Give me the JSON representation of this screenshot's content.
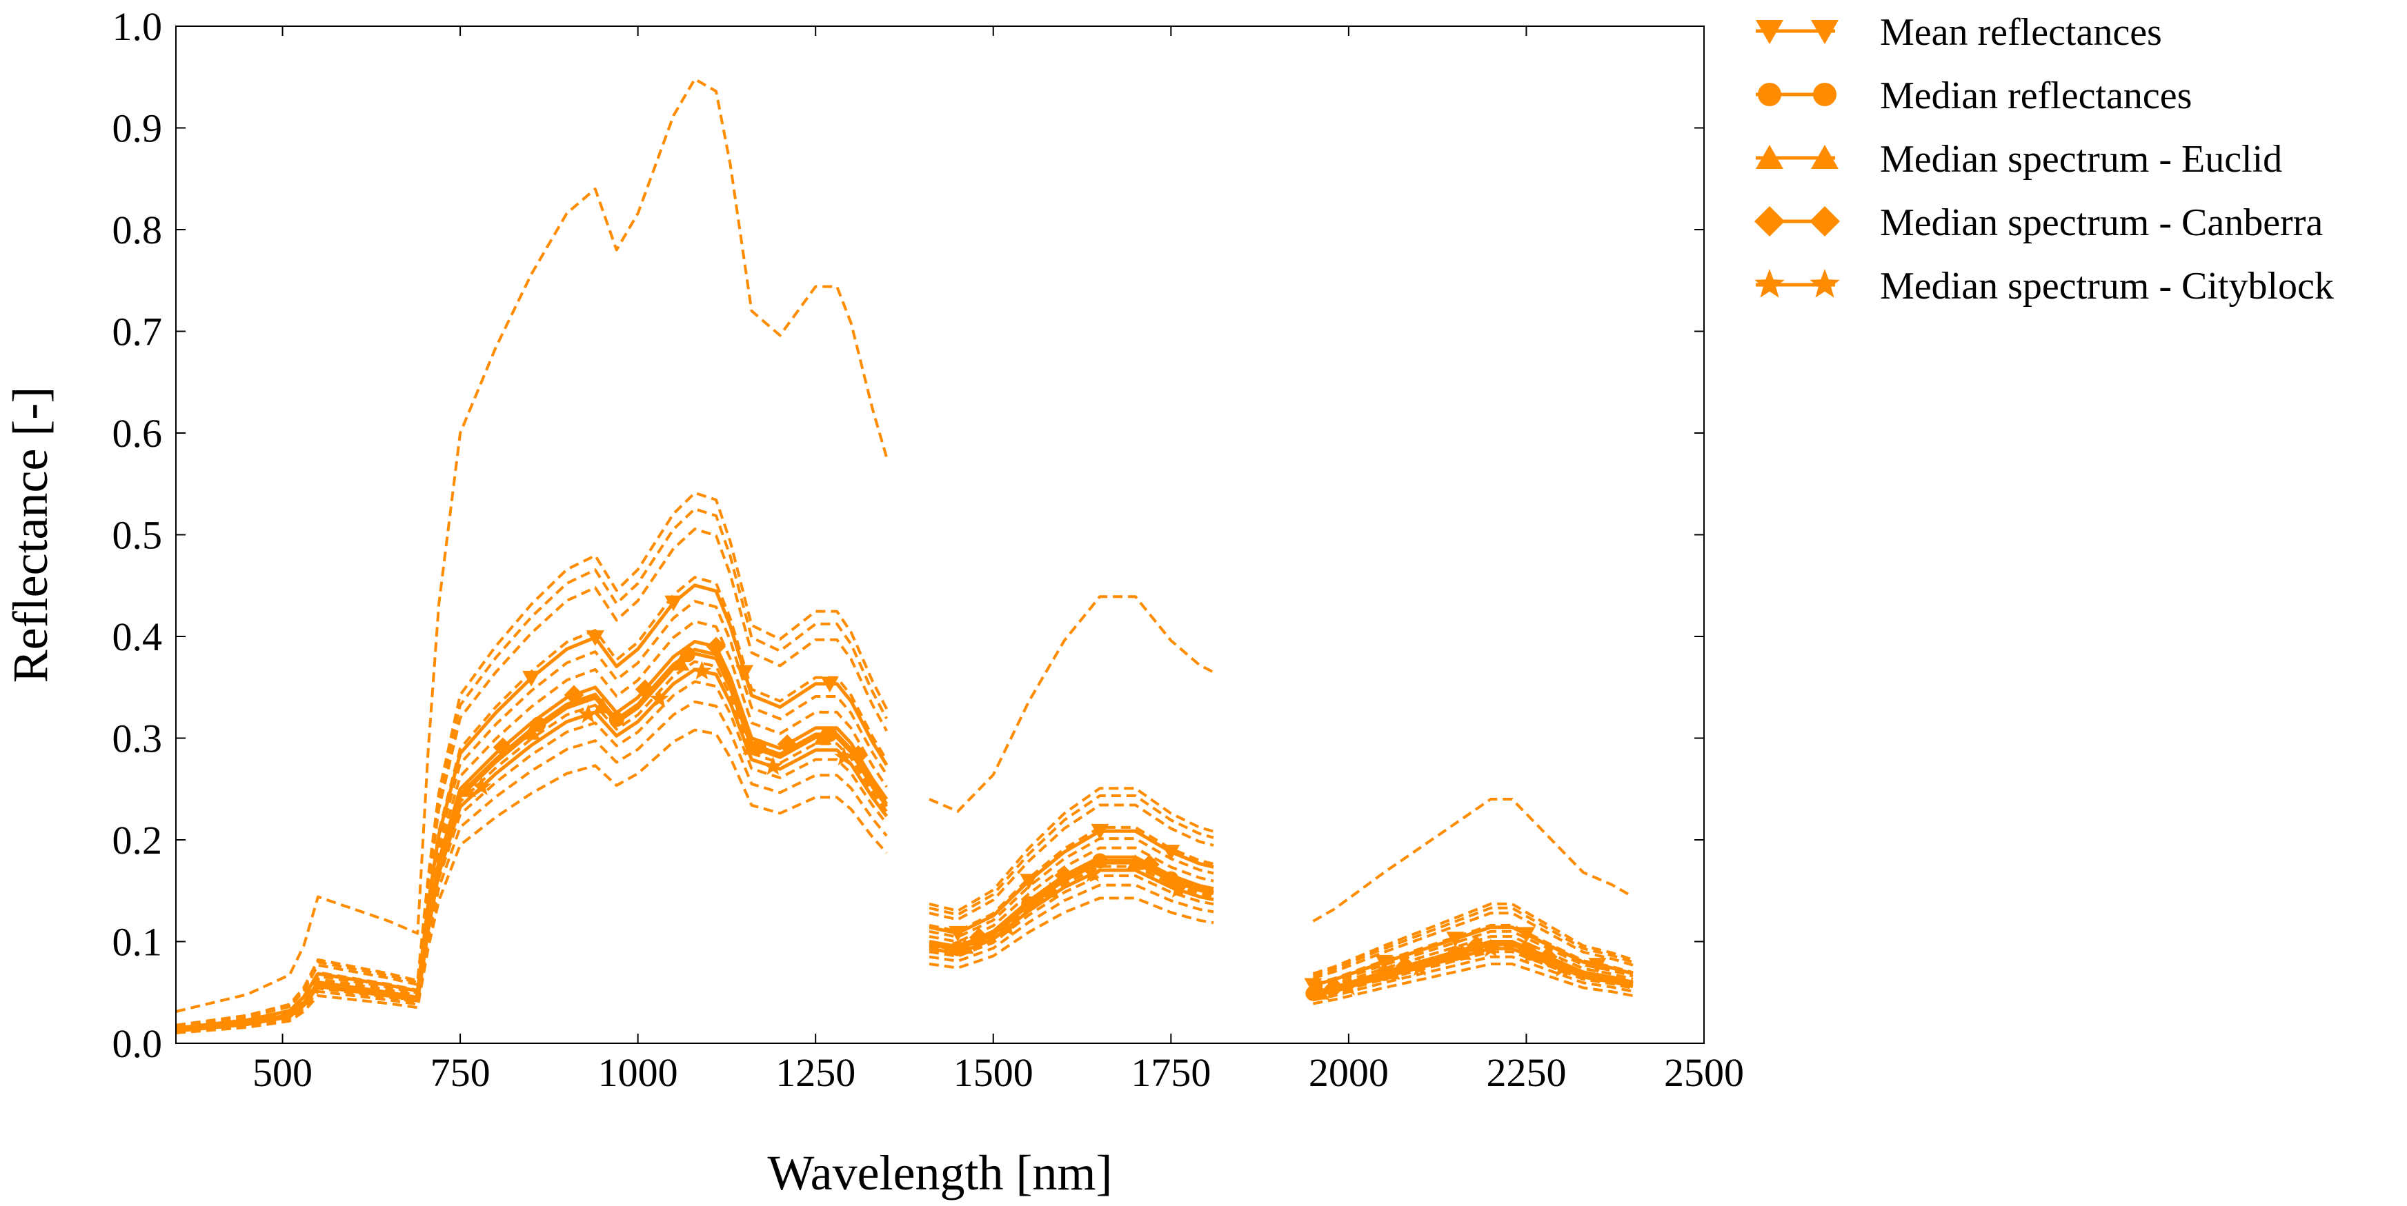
{
  "chart_data": {
    "type": "line",
    "title": "",
    "xlabel": "Wavelength [nm]",
    "ylabel": "Reflectance [-]",
    "xlim": [
      350,
      2500
    ],
    "ylim": [
      0,
      1.0
    ],
    "grid": false,
    "legend_position": "outside-top-right",
    "color": "#FF8C00",
    "x_ticks": [
      500,
      750,
      1000,
      1250,
      1500,
      1750,
      2000,
      2250,
      2500
    ],
    "x_tick_labels": [
      "500",
      "750",
      "1000",
      "1250",
      "1500",
      "1750",
      "2000",
      "2250",
      "2500"
    ],
    "y_ticks": [
      0,
      0.1,
      0.2,
      0.3,
      0.4,
      0.5,
      0.6,
      0.7,
      0.8,
      0.9,
      1.0
    ],
    "y_tick_labels": [
      "0.0",
      "0.1",
      "0.2",
      "0.3",
      "0.4",
      "0.5",
      "0.6",
      "0.7",
      "0.8",
      "0.9",
      "1.0"
    ],
    "legend": [
      {
        "label": "Mean reflectances",
        "marker": "triangle-down"
      },
      {
        "label": "Median reflectances",
        "marker": "circle"
      },
      {
        "label": "Median spectrum - Euclid",
        "marker": "triangle-up"
      },
      {
        "label": "Median spectrum - Canberra",
        "marker": "diamond"
      },
      {
        "label": "Median spectrum - Cityblock",
        "marker": "star"
      }
    ],
    "base_profile": {
      "segments": [
        {
          "x": [
            350,
            450,
            510,
            530,
            550,
            600,
            650,
            690,
            705,
            720,
            750,
            800,
            850,
            900,
            940,
            970,
            1000,
            1050,
            1080,
            1110,
            1130,
            1160,
            1200,
            1250,
            1280,
            1300,
            1330,
            1350
          ],
          "y": [
            0.013,
            0.02,
            0.028,
            0.04,
            0.06,
            0.055,
            0.05,
            0.045,
            0.12,
            0.18,
            0.25,
            0.285,
            0.315,
            0.34,
            0.35,
            0.325,
            0.34,
            0.38,
            0.395,
            0.39,
            0.36,
            0.3,
            0.29,
            0.31,
            0.31,
            0.295,
            0.26,
            0.24
          ]
        },
        {
          "x": [
            1410,
            1450,
            1500,
            1550,
            1600,
            1650,
            1700,
            1750,
            1790,
            1810
          ],
          "y": [
            0.1,
            0.095,
            0.11,
            0.14,
            0.165,
            0.183,
            0.183,
            0.165,
            0.155,
            0.152
          ]
        },
        {
          "x": [
            1950,
            1980,
            2050,
            2100,
            2150,
            2200,
            2230,
            2280,
            2330,
            2370,
            2400
          ],
          "y": [
            0.05,
            0.055,
            0.07,
            0.08,
            0.09,
            0.1,
            0.1,
            0.085,
            0.07,
            0.065,
            0.06
          ]
        }
      ]
    },
    "dashed_series": [
      {
        "name": "spectrum-1",
        "scale": 2.4
      },
      {
        "name": "spectrum-2",
        "scale": 1.37
      },
      {
        "name": "spectrum-3",
        "scale": 1.33
      },
      {
        "name": "spectrum-4",
        "scale": 1.28
      },
      {
        "name": "spectrum-5",
        "scale": 1.16
      },
      {
        "name": "spectrum-6",
        "scale": 1.1
      },
      {
        "name": "spectrum-7",
        "scale": 1.05
      },
      {
        "name": "spectrum-8",
        "scale": 0.95
      },
      {
        "name": "spectrum-9",
        "scale": 0.9
      },
      {
        "name": "spectrum-10",
        "scale": 0.85
      },
      {
        "name": "spectrum-11",
        "scale": 0.78
      }
    ],
    "highlight_series": [
      {
        "name": "Mean reflectances",
        "marker": "triangle-down",
        "scale": 1.14,
        "marker_x": [
          850,
          940,
          1050,
          1150,
          1270,
          1450,
          1550,
          1650,
          1750,
          1950,
          2050,
          2150,
          2250,
          2350
        ]
      },
      {
        "name": "Median reflectances",
        "marker": "circle",
        "scale": 0.98,
        "marker_x": [
          860,
          970,
          1070,
          1170,
          1270,
          1450,
          1550,
          1650,
          1750,
          1950,
          2050,
          2150,
          2250
        ]
      },
      {
        "name": "Median spectrum - Euclid",
        "marker": "triangle-up",
        "scale": 0.97,
        "marker_x": [
          760,
          850,
          950,
          1060,
          1160,
          1260,
          1460,
          1580,
          1700,
          1960,
          2060,
          2160,
          2260
        ]
      },
      {
        "name": "Median spectrum - Canberra",
        "marker": "diamond",
        "scale": 1.0,
        "marker_x": [
          810,
          910,
          1010,
          1110,
          1210,
          1310,
          1480,
          1600,
          1720,
          1980,
          2080,
          2180,
          2280
        ]
      },
      {
        "name": "Median spectrum - Cityblock",
        "marker": "star",
        "scale": 0.93,
        "marker_x": [
          780,
          930,
          1030,
          1090,
          1190,
          1290,
          1520,
          1640,
          1760,
          2000,
          2100,
          2200,
          2300
        ]
      }
    ]
  }
}
